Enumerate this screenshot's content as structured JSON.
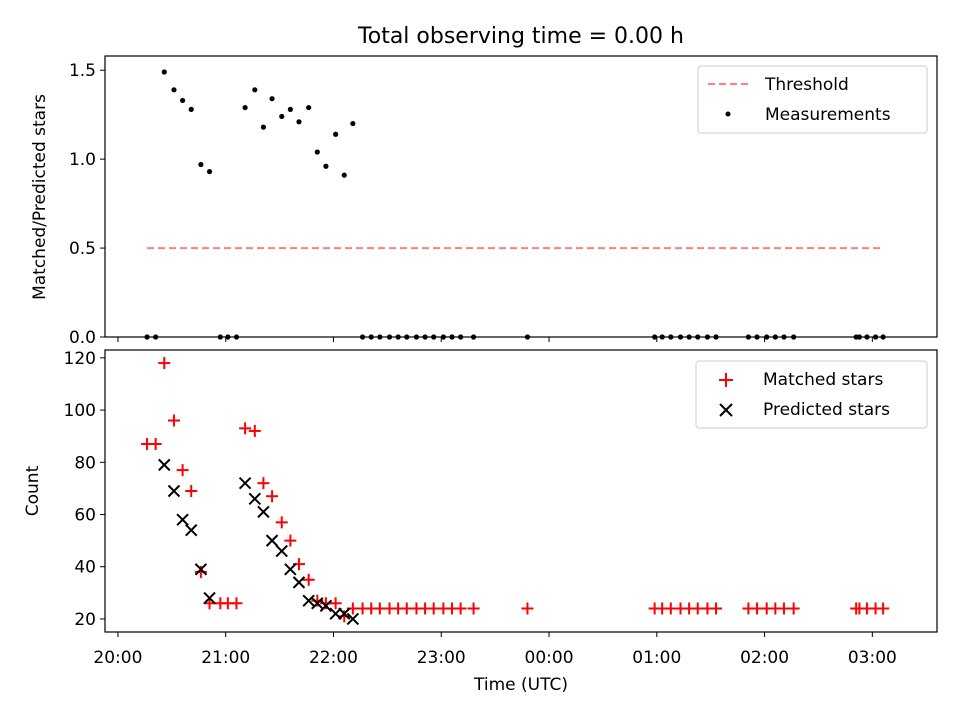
{
  "figure": {
    "title": "Total observing time = 0.00 h"
  },
  "chart_data": [
    {
      "type": "scatter",
      "panel": "top",
      "ylabel": "Matched/Predicted stars",
      "xlim": [
        19.88,
        27.6
      ],
      "ylim": [
        0,
        1.58
      ],
      "yticks": [
        0.0,
        0.5,
        1.0,
        1.5
      ],
      "ytick_labels": [
        "0.0",
        "0.5",
        "1.0",
        "1.5"
      ],
      "legend_position": "upper right",
      "series": [
        {
          "name": "Threshold",
          "kind": "dashed-line",
          "color": "#ff7f7f",
          "x": [
            20.27,
            27.1
          ],
          "y": [
            0.5,
            0.5
          ]
        },
        {
          "name": "Measurements",
          "kind": "points",
          "color": "#000000",
          "x": [
            20.27,
            20.35,
            20.43,
            20.52,
            20.6,
            20.68,
            20.77,
            20.85,
            20.95,
            21.02,
            21.1,
            21.18,
            21.27,
            21.35,
            21.43,
            21.52,
            21.6,
            21.68,
            21.77,
            21.85,
            21.93,
            22.02,
            22.1,
            22.18,
            22.27,
            22.35,
            22.43,
            22.52,
            22.6,
            22.68,
            22.77,
            22.85,
            22.93,
            23.02,
            23.1,
            23.18,
            23.3,
            23.8,
            24.98,
            25.05,
            25.13,
            25.22,
            25.3,
            25.38,
            25.47,
            25.55,
            25.85,
            25.93,
            26.02,
            26.1,
            26.18,
            26.27,
            26.85,
            26.88,
            26.95,
            27.03,
            27.1
          ],
          "y": [
            0.0,
            0.0,
            1.49,
            1.39,
            1.33,
            1.28,
            0.97,
            0.93,
            0.0,
            0.0,
            0.0,
            1.29,
            1.39,
            1.18,
            1.34,
            1.24,
            1.28,
            1.21,
            1.29,
            1.04,
            0.96,
            1.14,
            0.91,
            1.2,
            0.0,
            0.0,
            0.0,
            0.0,
            0.0,
            0.0,
            0.0,
            0.0,
            0.0,
            0.0,
            0.0,
            0.0,
            0.0,
            0.0,
            0.0,
            0.0,
            0.0,
            0.0,
            0.0,
            0.0,
            0.0,
            0.0,
            0.0,
            0.0,
            0.0,
            0.0,
            0.0,
            0.0,
            0.0,
            0.0,
            0.0,
            0.0,
            0.0
          ]
        }
      ]
    },
    {
      "type": "scatter",
      "panel": "bottom",
      "xlabel": "Time (UTC)",
      "ylabel": "Count",
      "xlim": [
        19.88,
        27.6
      ],
      "ylim": [
        15,
        123
      ],
      "xticks": [
        20,
        21,
        22,
        23,
        24,
        25,
        26,
        27
      ],
      "xtick_labels": [
        "20:00",
        "21:00",
        "22:00",
        "23:00",
        "00:00",
        "01:00",
        "02:00",
        "03:00"
      ],
      "yticks": [
        20,
        40,
        60,
        80,
        100,
        120
      ],
      "ytick_labels": [
        "20",
        "40",
        "60",
        "80",
        "100",
        "120"
      ],
      "legend_position": "upper right",
      "series": [
        {
          "name": "Matched stars",
          "marker": "plus",
          "color": "#ff0000",
          "x": [
            20.27,
            20.35,
            20.43,
            20.52,
            20.6,
            20.68,
            20.77,
            20.85,
            20.95,
            21.02,
            21.1,
            21.18,
            21.27,
            21.35,
            21.43,
            21.52,
            21.6,
            21.68,
            21.77,
            21.85,
            21.93,
            22.02,
            22.1,
            22.18,
            22.27,
            22.35,
            22.43,
            22.52,
            22.6,
            22.68,
            22.77,
            22.85,
            22.93,
            23.02,
            23.1,
            23.18,
            23.3,
            23.8,
            24.98,
            25.05,
            25.13,
            25.22,
            25.3,
            25.38,
            25.47,
            25.55,
            25.85,
            25.93,
            26.02,
            26.1,
            26.18,
            26.27,
            26.85,
            26.88,
            26.95,
            27.03,
            27.1
          ],
          "y": [
            87,
            87,
            118,
            96,
            77,
            69,
            38,
            26,
            26,
            26,
            26,
            93,
            92,
            72,
            67,
            57,
            50,
            41,
            35,
            27,
            26,
            26,
            21,
            24,
            24,
            24,
            24,
            24,
            24,
            24,
            24,
            24,
            24,
            24,
            24,
            24,
            24,
            24,
            24,
            24,
            24,
            24,
            24,
            24,
            24,
            24,
            24,
            24,
            24,
            24,
            24,
            24,
            24,
            24,
            24,
            24,
            24
          ]
        },
        {
          "name": "Predicted stars",
          "marker": "x",
          "color": "#000000",
          "x": [
            20.43,
            20.52,
            20.6,
            20.68,
            20.77,
            20.85,
            21.18,
            21.27,
            21.35,
            21.43,
            21.52,
            21.6,
            21.68,
            21.77,
            21.85,
            21.93,
            22.02,
            22.1,
            22.18
          ],
          "y": [
            79,
            69,
            58,
            54,
            39,
            28,
            72,
            66,
            61,
            50,
            46,
            39,
            34,
            27,
            26,
            25,
            22,
            22,
            20
          ]
        }
      ]
    }
  ]
}
